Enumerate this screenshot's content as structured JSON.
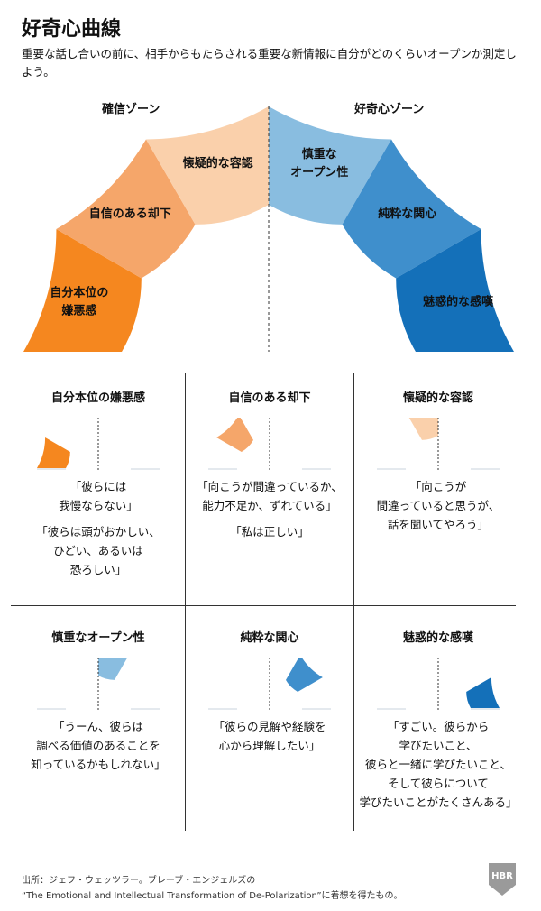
{
  "title": "好奇心曲線",
  "subtitle": "重要な話し合いの前に、相手からもたらされる重要な新情報に自分がどのくらいオープンか測定しよう。",
  "zones": {
    "left": "確信ゾーン",
    "right": "好奇心ゾーン"
  },
  "segments": [
    {
      "lines": [
        "自分本位の",
        "嫌悪感"
      ],
      "color": "#f5871f"
    },
    {
      "lines": [
        "自信のある却下"
      ],
      "color": "#f5a66a"
    },
    {
      "lines": [
        "懐疑的な容認"
      ],
      "color": "#fad0ab"
    },
    {
      "lines": [
        "慎重な",
        "オープン性"
      ],
      "color": "#89bde0"
    },
    {
      "lines": [
        "純粋な関心"
      ],
      "color": "#3f8fcc"
    },
    {
      "lines": [
        "魅惑的な感嘆"
      ],
      "color": "#1470b9"
    }
  ],
  "cells": [
    {
      "title": "自分本位の嫌悪感",
      "quotes": [
        [
          "「彼らには",
          "我慢ならない」"
        ],
        [
          "「彼らは頭がおかしい、",
          "ひどい、あるいは",
          "恐ろしい」"
        ]
      ]
    },
    {
      "title": "自信のある却下",
      "quotes": [
        [
          "「向こうが間違っているか、",
          "能力不足か、ずれている」"
        ],
        [
          "「私は正しい」"
        ]
      ]
    },
    {
      "title": "懐疑的な容認",
      "quotes": [
        [
          "「向こうが",
          "間違っていると思うが、",
          "話を聞いてやろう」"
        ]
      ]
    },
    {
      "title": "慎重なオープン性",
      "quotes": [
        [
          "「うーん、彼らは",
          "調べる価値のあることを",
          "知っているかもしれない」"
        ]
      ]
    },
    {
      "title": "純粋な関心",
      "quotes": [
        [
          "「彼らの見解や経験を",
          "心から理解したい」"
        ]
      ]
    },
    {
      "title": "魅惑的な感嘆",
      "quotes": [
        [
          "「すごい。彼らから",
          "学びたいこと、",
          "彼らと一緒に学びたいこと、",
          "そして彼らについて",
          "学びたいことがたくさんある」"
        ]
      ]
    }
  ],
  "gauge_bg": "#e4e9ee",
  "footer": {
    "line1": "出所：ジェフ・ウェッツラー。ブレーブ・エンジェルズの",
    "line2": "“The Emotional and Intellectual Transformation of De-Polarization”に着想を得たもの。"
  },
  "logo": "HBR"
}
